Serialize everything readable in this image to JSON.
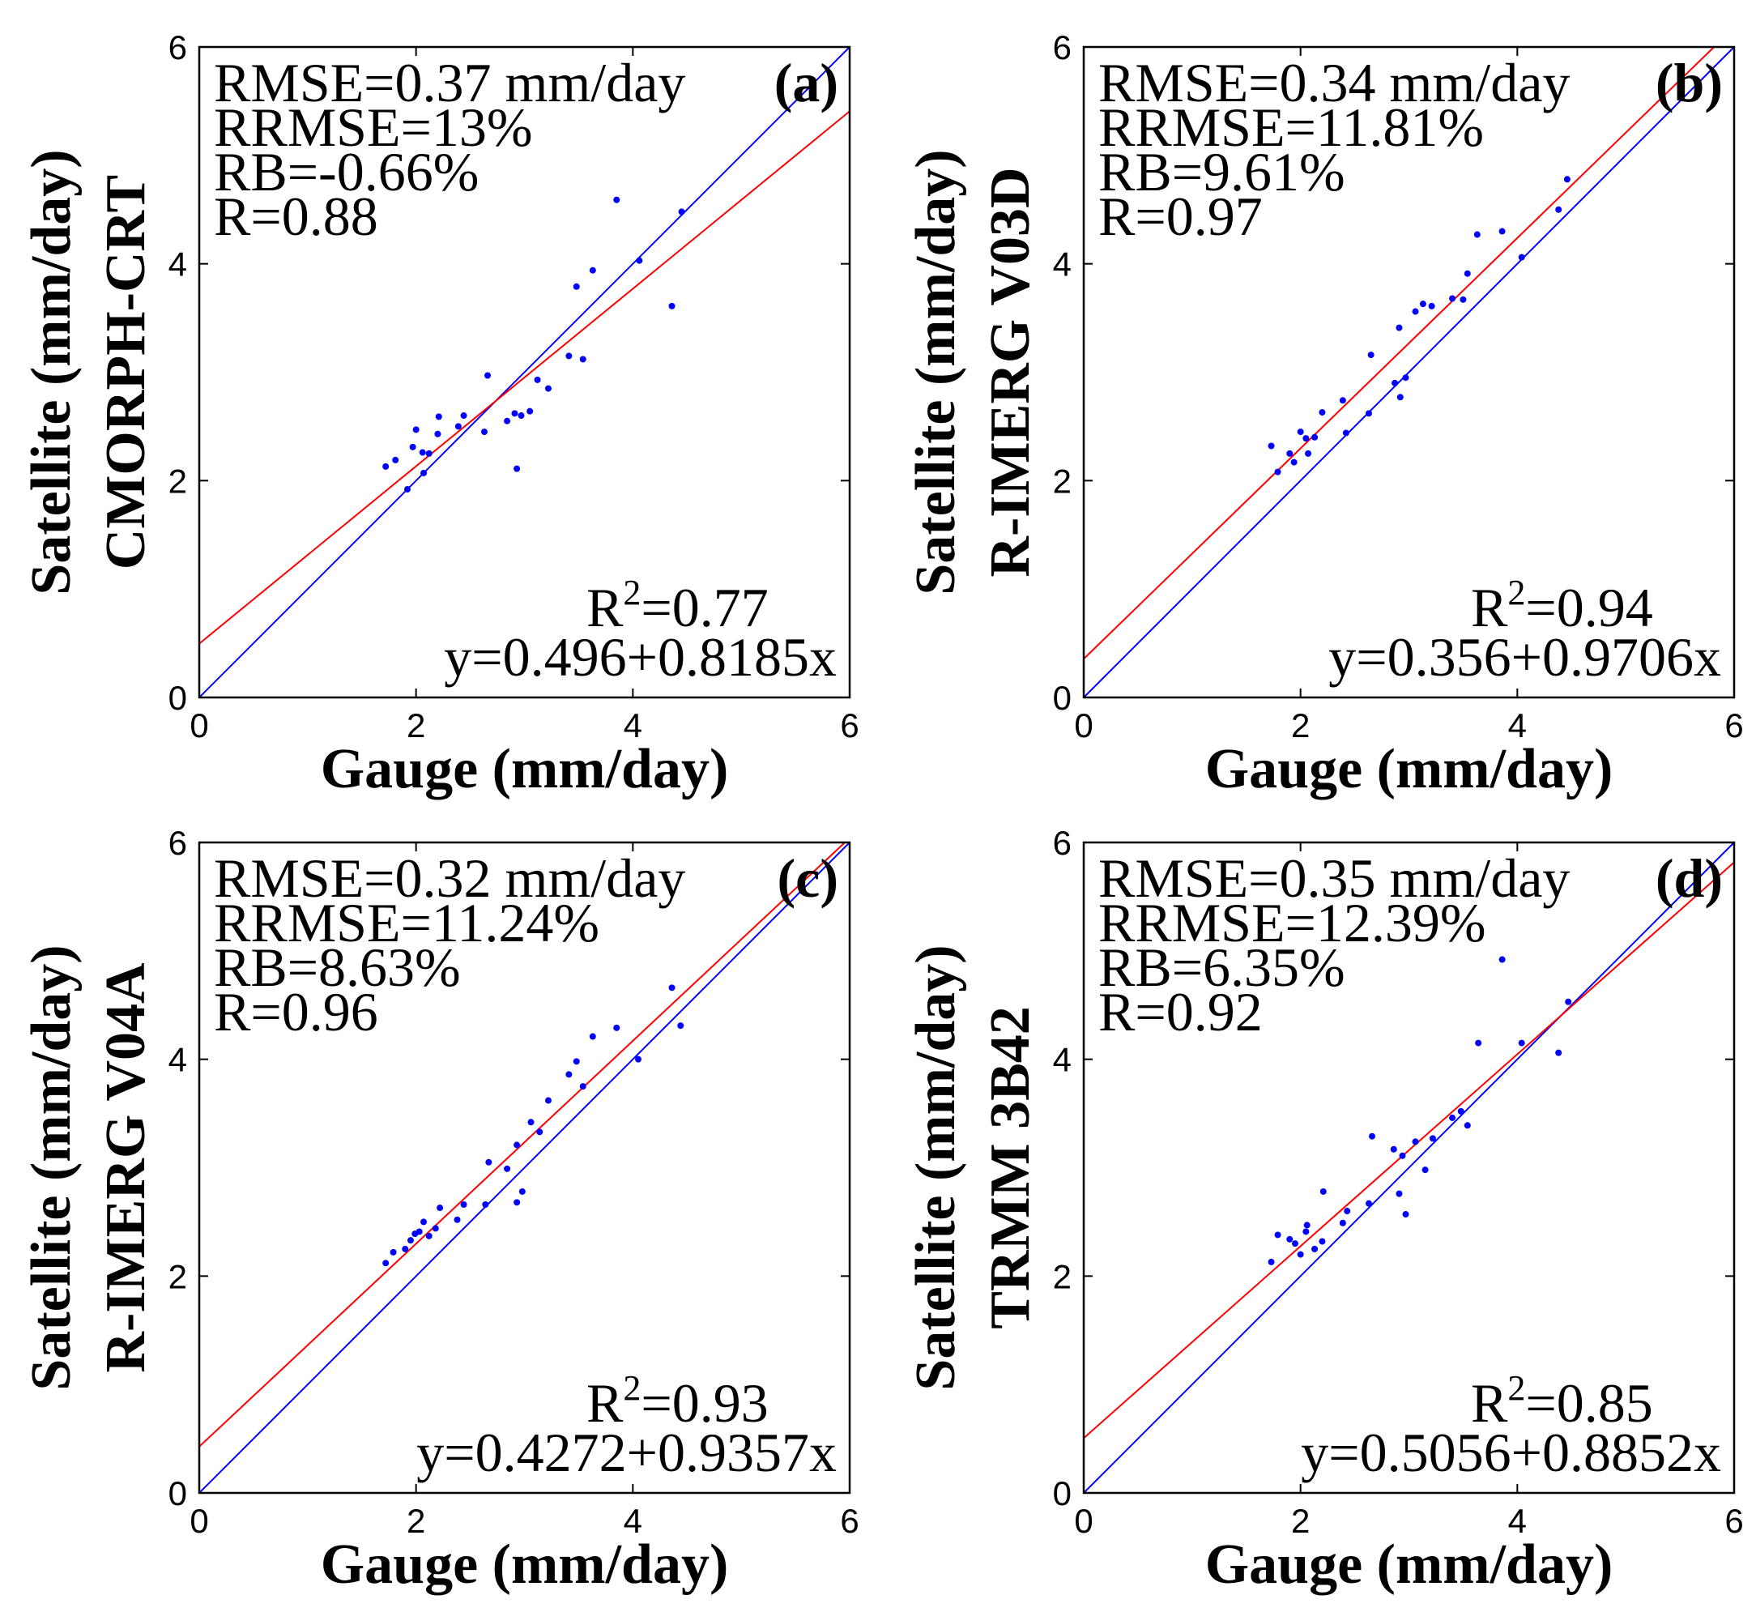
{
  "colors": {
    "points": "#0000ff",
    "identity_line": "#0000ff",
    "fit_line": "#ff0000",
    "axes": "#000000"
  },
  "chart_data": [
    {
      "type": "scatter",
      "panel_label": "(a)",
      "xlabel": "Gauge (mm/day)",
      "ylabel": "Satellite (mm/day)",
      "product": "CMORPH-CRT",
      "xlim": [
        0,
        6
      ],
      "ylim": [
        0,
        6
      ],
      "xticks": [
        0,
        2,
        4,
        6
      ],
      "yticks": [
        0,
        2,
        4,
        6
      ],
      "stats": {
        "rmse": "RMSE=0.37 mm/day",
        "rrmse": "RRMSE=13%",
        "rb": "RB=-0.66%",
        "r": "R=0.88"
      },
      "r2": {
        "base": "R",
        "sup": "2",
        "value": "=0.77"
      },
      "equation": "y=0.496+0.8185x",
      "fit": {
        "intercept": 0.496,
        "slope": 0.8185
      },
      "identity_line": {
        "intercept": 0,
        "slope": 1
      },
      "x": [
        1.72,
        1.81,
        1.92,
        1.97,
        2.0,
        2.06,
        2.07,
        2.12,
        2.2,
        2.21,
        2.39,
        2.44,
        2.63,
        2.66,
        2.84,
        2.91,
        2.93,
        2.97,
        3.05,
        3.12,
        3.22,
        3.41,
        3.48,
        3.54,
        3.63,
        3.85,
        4.06,
        4.36,
        4.45
      ],
      "y": [
        2.13,
        2.19,
        1.92,
        2.31,
        2.47,
        2.26,
        2.07,
        2.25,
        2.43,
        2.59,
        2.5,
        2.6,
        2.45,
        2.97,
        2.55,
        2.62,
        2.11,
        2.6,
        2.64,
        2.93,
        2.85,
        3.15,
        3.79,
        3.12,
        3.94,
        4.59,
        4.03,
        3.61,
        4.48
      ]
    },
    {
      "type": "scatter",
      "panel_label": "(b)",
      "xlabel": "Gauge (mm/day)",
      "ylabel": "Satellite (mm/day)",
      "product": "R-IMERG V03D",
      "xlim": [
        0,
        6
      ],
      "ylim": [
        0,
        6
      ],
      "xticks": [
        0,
        2,
        4,
        6
      ],
      "yticks": [
        0,
        2,
        4,
        6
      ],
      "stats": {
        "rmse": "RMSE=0.34 mm/day",
        "rrmse": "RRMSE=11.81%",
        "rb": "RB=9.61%",
        "r": "R=0.97"
      },
      "r2": {
        "base": "R",
        "sup": "2",
        "value": "=0.94"
      },
      "equation": "y=0.356+0.9706x",
      "fit": {
        "intercept": 0.356,
        "slope": 0.9706
      },
      "identity_line": {
        "intercept": 0,
        "slope": 1
      },
      "x": [
        1.73,
        1.79,
        1.9,
        1.94,
        2.0,
        2.05,
        2.07,
        2.13,
        2.2,
        2.39,
        2.42,
        2.63,
        2.65,
        2.87,
        2.91,
        2.92,
        2.97,
        3.06,
        3.13,
        3.21,
        3.4,
        3.5,
        3.54,
        3.63,
        3.86,
        4.04,
        4.38,
        4.46
      ],
      "y": [
        2.32,
        2.08,
        2.25,
        2.17,
        2.45,
        2.39,
        2.25,
        2.4,
        2.63,
        2.74,
        2.44,
        2.62,
        3.16,
        2.9,
        3.41,
        2.77,
        2.95,
        3.56,
        3.63,
        3.61,
        3.68,
        3.67,
        3.91,
        4.27,
        4.3,
        4.06,
        4.5,
        4.78
      ]
    },
    {
      "type": "scatter",
      "panel_label": "(c)",
      "xlabel": "Gauge (mm/day)",
      "ylabel": "Satellite (mm/day)",
      "product": "R-IMERG V04A",
      "xlim": [
        0,
        6
      ],
      "ylim": [
        0,
        6
      ],
      "xticks": [
        0,
        2,
        4,
        6
      ],
      "yticks": [
        0,
        2,
        4,
        6
      ],
      "stats": {
        "rmse": "RMSE=0.32 mm/day",
        "rrmse": "RRMSE=11.24%",
        "rb": "RB=8.63%",
        "r": "R=0.96"
      },
      "r2": {
        "base": "R",
        "sup": "2",
        "value": "=0.93"
      },
      "equation": "y=0.4272+0.9357x",
      "fit": {
        "intercept": 0.4272,
        "slope": 0.9357
      },
      "identity_line": {
        "intercept": 0,
        "slope": 1
      },
      "x": [
        1.72,
        1.79,
        1.9,
        1.95,
        1.99,
        2.03,
        2.07,
        2.12,
        2.18,
        2.22,
        2.38,
        2.44,
        2.64,
        2.67,
        2.84,
        2.93,
        2.93,
        2.98,
        3.06,
        3.14,
        3.22,
        3.41,
        3.48,
        3.54,
        3.63,
        3.85,
        4.05,
        4.36,
        4.44
      ],
      "y": [
        2.12,
        2.22,
        2.25,
        2.33,
        2.39,
        2.41,
        2.5,
        2.37,
        2.44,
        2.63,
        2.52,
        2.66,
        2.66,
        3.05,
        2.99,
        3.21,
        2.68,
        2.78,
        3.42,
        3.33,
        3.62,
        3.86,
        3.98,
        3.75,
        4.21,
        4.29,
        4.0,
        4.66,
        4.31
      ]
    },
    {
      "type": "scatter",
      "panel_label": "(d)",
      "xlabel": "Gauge (mm/day)",
      "ylabel": "Satellite (mm/day)",
      "product": "TRMM 3B42",
      "xlim": [
        0,
        6
      ],
      "ylim": [
        0,
        6
      ],
      "xticks": [
        0,
        2,
        4,
        6
      ],
      "yticks": [
        0,
        2,
        4,
        6
      ],
      "stats": {
        "rmse": "RMSE=0.35 mm/day",
        "rrmse": "RRMSE=12.39%",
        "rb": "RB=6.35%",
        "r": "R=0.92"
      },
      "r2": {
        "base": "R",
        "sup": "2",
        "value": "=0.85"
      },
      "equation": "y=0.5056+0.8852x",
      "fit": {
        "intercept": 0.5056,
        "slope": 0.8852
      },
      "identity_line": {
        "intercept": 0,
        "slope": 1
      },
      "x": [
        1.73,
        1.79,
        1.9,
        1.95,
        2.0,
        2.05,
        2.06,
        2.13,
        2.2,
        2.21,
        2.39,
        2.43,
        2.63,
        2.66,
        2.86,
        2.91,
        2.94,
        2.97,
        3.06,
        3.15,
        3.22,
        3.4,
        3.48,
        3.54,
        3.64,
        3.86,
        4.04,
        4.38,
        4.47
      ],
      "y": [
        2.13,
        2.38,
        2.34,
        2.3,
        2.2,
        2.41,
        2.47,
        2.25,
        2.32,
        2.78,
        2.49,
        2.6,
        2.67,
        3.29,
        3.17,
        2.76,
        3.11,
        2.57,
        3.24,
        2.98,
        3.27,
        3.46,
        3.52,
        3.39,
        4.15,
        4.92,
        4.15,
        4.06,
        4.53
      ]
    }
  ]
}
